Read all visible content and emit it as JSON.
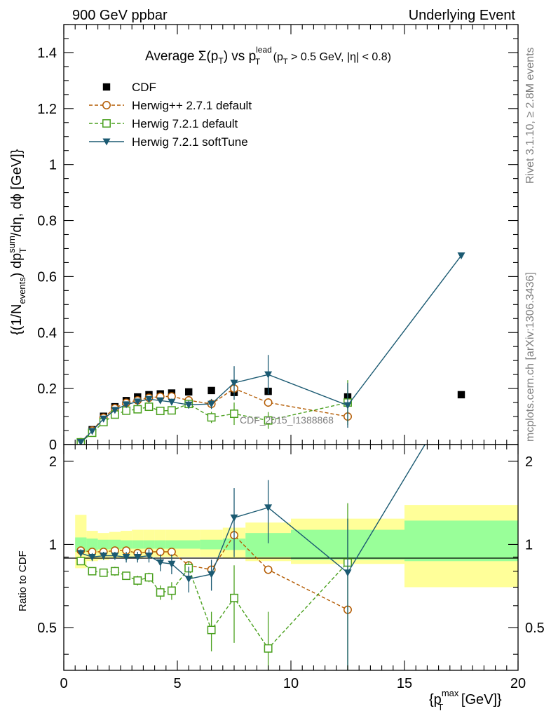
{
  "header": {
    "left": "900 GeV ppbar",
    "right": "Underlying Event"
  },
  "side": {
    "rivet": "Rivet 3.1.10, ≥ 2.8M events",
    "mcplots": "mcplots.cern.ch [arXiv:1306.3436]"
  },
  "watermark": "CDF_2015_I1388868",
  "chart_data": {
    "type": "line",
    "title": {
      "pre": "Average Σ(p",
      "sub1": "T",
      "mid": ") vs p",
      "sub2": "T",
      "sup2": "lead",
      "post": " (p",
      "sub3": "T",
      "tail": " > 0.5 GeV, |η| < 0.8)"
    },
    "ylabel": {
      "a": "{(1/N",
      "a_sub": "events",
      "b": ") dp",
      "b_sup": "sum",
      "b_sub": "T",
      "c": "/dη, dϕ [GeV]}"
    },
    "ratio_ylabel": "Ratio to CDF",
    "xlabel": {
      "a": "{p",
      "sup": "max",
      "sub": "T",
      "b": " [GeV]}"
    },
    "xlim": [
      0,
      20
    ],
    "ylim": [
      0,
      1.5
    ],
    "ratio_ylim": [
      0.35,
      2.3
    ],
    "x_ticks": [
      "0",
      "5",
      "10",
      "15",
      "20"
    ],
    "y_ticks": [
      "0",
      "0.2",
      "0.4",
      "0.6",
      "0.8",
      "1",
      "1.2",
      "1.4"
    ],
    "ratio_ticks": [
      "0.5",
      "1",
      "2"
    ],
    "reference": {
      "name": "CDF",
      "x": [
        0.75,
        1.25,
        1.75,
        2.25,
        2.75,
        3.25,
        3.75,
        4.25,
        4.75,
        5.5,
        6.5,
        7.5,
        9.0,
        12.5,
        17.5
      ],
      "y": [
        0.009,
        0.053,
        0.101,
        0.135,
        0.157,
        0.17,
        0.178,
        0.181,
        0.184,
        0.188,
        0.193,
        0.186,
        0.19,
        0.17,
        0.178
      ],
      "bins": [
        [
          0.5,
          1.0
        ],
        [
          1.0,
          1.5
        ],
        [
          1.5,
          2.0
        ],
        [
          2.0,
          2.5
        ],
        [
          2.5,
          3.0
        ],
        [
          3.0,
          3.5
        ],
        [
          3.5,
          4.0
        ],
        [
          4.0,
          4.5
        ],
        [
          4.5,
          5.0
        ],
        [
          5.0,
          6.0
        ],
        [
          6.0,
          7.0
        ],
        [
          7.0,
          8.0
        ],
        [
          8.0,
          10.0
        ],
        [
          10.0,
          15.0
        ],
        [
          15.0,
          20.0
        ]
      ],
      "band_stat_lo": [
        0.94,
        0.95,
        0.96,
        0.96,
        0.965,
        0.965,
        0.965,
        0.965,
        0.965,
        0.965,
        0.96,
        0.955,
        0.9,
        0.88,
        0.87
      ],
      "band_stat_hi": [
        1.06,
        1.05,
        1.04,
        1.04,
        1.035,
        1.035,
        1.035,
        1.035,
        1.035,
        1.035,
        1.04,
        1.05,
        1.1,
        1.13,
        1.22
      ],
      "band_tot_lo": [
        0.82,
        0.87,
        0.88,
        0.89,
        0.89,
        0.89,
        0.9,
        0.9,
        0.9,
        0.9,
        0.9,
        0.89,
        0.87,
        0.85,
        0.7
      ],
      "band_tot_hi": [
        1.28,
        1.12,
        1.1,
        1.11,
        1.12,
        1.13,
        1.13,
        1.13,
        1.13,
        1.13,
        1.13,
        1.15,
        1.2,
        1.24,
        1.39
      ]
    },
    "series": [
      {
        "name": "Herwig++ 2.7.1 default",
        "color": "#b35a00",
        "marker": "circle",
        "dash": "5,3",
        "x": [
          0.75,
          1.25,
          1.75,
          2.25,
          2.75,
          3.25,
          3.75,
          4.25,
          4.75,
          5.5,
          6.5,
          7.5,
          9.0,
          12.5
        ],
        "y": [
          0.0085,
          0.05,
          0.096,
          0.13,
          0.149,
          0.158,
          0.167,
          0.171,
          0.172,
          0.158,
          0.145,
          0.2,
          0.15,
          0.1
        ],
        "yerr": [
          0.001,
          0.002,
          0.003,
          0.004,
          0.005,
          0.005,
          0.005,
          0.006,
          0.006,
          0.006,
          0.008,
          0.012,
          0.015,
          0.02
        ],
        "ratio": [
          0.95,
          0.94,
          0.94,
          0.95,
          0.95,
          0.93,
          0.94,
          0.94,
          0.94,
          0.84,
          0.81,
          1.08,
          0.81,
          0.58
        ]
      },
      {
        "name": "Herwig 7.2.1 default",
        "color": "#4aa01e",
        "marker": "square",
        "dash": "5,3",
        "x": [
          0.75,
          1.25,
          1.75,
          2.25,
          2.75,
          3.25,
          3.75,
          4.25,
          4.75,
          5.5,
          6.5,
          7.5,
          9.0,
          12.5
        ],
        "y": [
          0.008,
          0.042,
          0.08,
          0.107,
          0.121,
          0.126,
          0.135,
          0.12,
          0.122,
          0.145,
          0.097,
          0.11,
          0.086,
          0.15
        ],
        "yerr": [
          0.001,
          0.003,
          0.004,
          0.006,
          0.007,
          0.008,
          0.009,
          0.012,
          0.013,
          0.012,
          0.02,
          0.04,
          0.03,
          0.08
        ],
        "ratio": [
          0.87,
          0.8,
          0.79,
          0.8,
          0.77,
          0.74,
          0.76,
          0.67,
          0.68,
          0.82,
          0.49,
          0.64,
          0.42,
          0.86
        ],
        "ratio_err": [
          0.02,
          0.02,
          0.02,
          0.03,
          0.02,
          0.03,
          0.03,
          0.04,
          0.05,
          0.05,
          0.08,
          0.2,
          0.15,
          0.55
        ]
      },
      {
        "name": "Herwig 7.2.1 softTune",
        "color": "#1b5a72",
        "marker": "triangle-down",
        "dash": "",
        "x": [
          0.75,
          1.25,
          1.75,
          2.25,
          2.75,
          3.25,
          3.75,
          4.25,
          4.75,
          5.5,
          6.5,
          7.5,
          9.0,
          12.5,
          17.5
        ],
        "y": [
          0.0085,
          0.048,
          0.092,
          0.123,
          0.143,
          0.153,
          0.162,
          0.157,
          0.152,
          0.142,
          0.145,
          0.22,
          0.25,
          0.14,
          0.675
        ],
        "yerr": [
          0.001,
          0.003,
          0.004,
          0.005,
          0.006,
          0.007,
          0.008,
          0.01,
          0.012,
          0.014,
          0.018,
          0.06,
          0.07,
          0.08,
          0.0
        ],
        "ratio": [
          0.93,
          0.9,
          0.91,
          0.91,
          0.9,
          0.9,
          0.91,
          0.86,
          0.85,
          0.75,
          0.78,
          1.25,
          1.36,
          0.79,
          3.8
        ],
        "ratio_err": [
          0.03,
          0.03,
          0.03,
          0.03,
          0.04,
          0.04,
          0.05,
          0.06,
          0.07,
          0.08,
          0.1,
          0.35,
          0.35,
          0.45,
          0.0
        ]
      }
    ]
  }
}
